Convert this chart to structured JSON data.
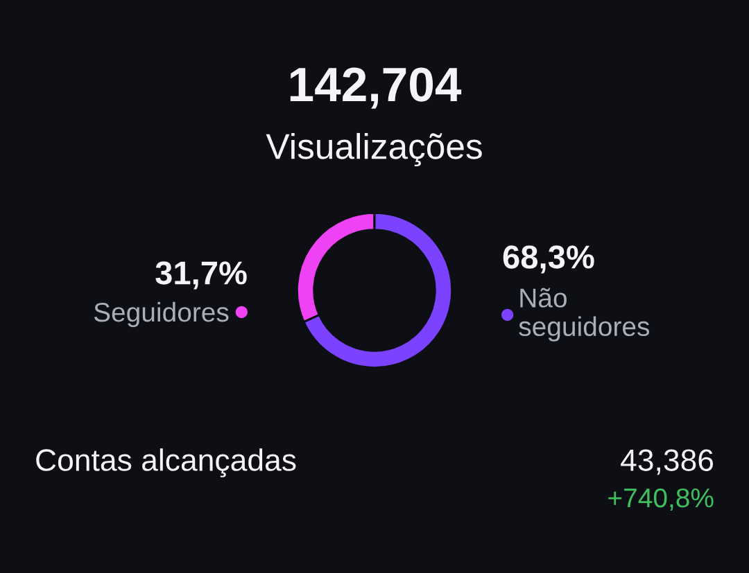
{
  "chart_data": {
    "type": "donut",
    "title": "142,704",
    "subtitle": "Visualizações",
    "categories": [
      "Seguidores",
      "Não seguidores"
    ],
    "values": [
      31.7,
      68.3
    ],
    "colors": [
      "#f042f5",
      "#7b43ff"
    ],
    "value_labels": [
      "31,7%",
      "68,3%"
    ],
    "annotations": [
      "Contas alcançadas",
      "43,386",
      "+740,8%"
    ]
  }
}
